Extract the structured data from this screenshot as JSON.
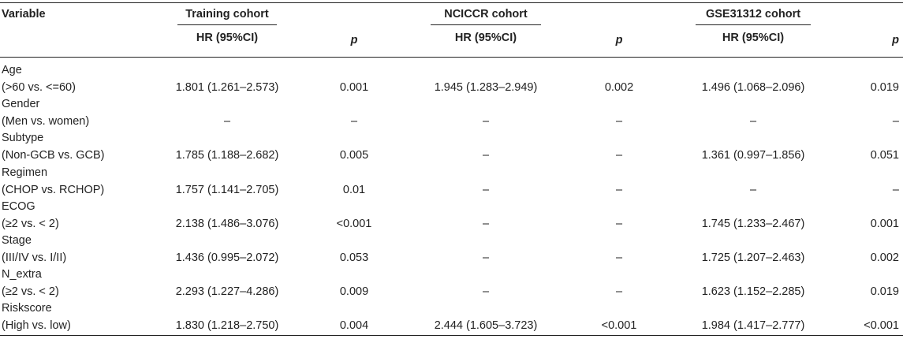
{
  "header": {
    "variable": "Variable",
    "groups": [
      "Training cohort",
      "NCICCR cohort",
      "GSE31312 cohort"
    ],
    "hr_label": "HR (95%CI)",
    "p_label": "p"
  },
  "rows": [
    {
      "name": "Age",
      "compare": "(>60 vs. <=60)",
      "vals": [
        "1.801 (1.261–2.573)",
        "0.001",
        "1.945 (1.283–2.949)",
        "0.002",
        "1.496 (1.068–2.096)",
        "0.019"
      ]
    },
    {
      "name": "Gender",
      "compare": "(Men vs. women)",
      "vals": [
        "–",
        "–",
        "–",
        "–",
        "–",
        "–"
      ]
    },
    {
      "name": "Subtype",
      "compare": "(Non-GCB vs. GCB)",
      "vals": [
        "1.785 (1.188–2.682)",
        "0.005",
        "–",
        "–",
        "1.361 (0.997–1.856)",
        "0.051"
      ]
    },
    {
      "name": "Regimen",
      "compare": "(CHOP vs. RCHOP)",
      "vals": [
        "1.757 (1.141–2.705)",
        "0.01",
        "–",
        "–",
        "–",
        "–"
      ]
    },
    {
      "name": "ECOG",
      "compare": "(≥2 vs. < 2)",
      "vals": [
        "2.138 (1.486–3.076)",
        "<0.001",
        "–",
        "–",
        "1.745 (1.233–2.467)",
        "0.001"
      ]
    },
    {
      "name": "Stage",
      "compare": "(III/IV vs. I/II)",
      "vals": [
        "1.436 (0.995–2.072)",
        "0.053",
        "–",
        "–",
        "1.725 (1.207–2.463)",
        "0.002"
      ]
    },
    {
      "name": "N_extra",
      "compare": "(≥2 vs. < 2)",
      "vals": [
        "2.293 (1.227–4.286)",
        "0.009",
        "–",
        "–",
        "1.623 (1.152–2.285)",
        "0.019"
      ]
    },
    {
      "name": "Riskscore",
      "compare": "(High vs. low)",
      "vals": [
        "1.830 (1.218–2.750)",
        "0.004",
        "2.444 (1.605–3.723)",
        "<0.001",
        "1.984 (1.417–2.777)",
        "<0.001"
      ]
    }
  ]
}
